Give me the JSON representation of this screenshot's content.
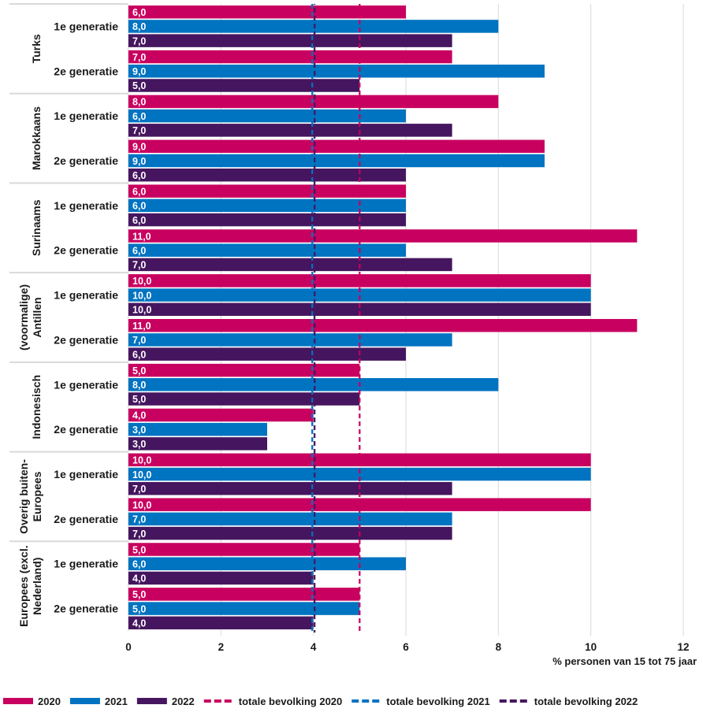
{
  "chart_data": {
    "type": "bar",
    "orientation": "horizontal",
    "title": "",
    "xlabel": "% personen van 15 tot 75 jaar",
    "ylabel": "",
    "xlim": [
      0,
      12
    ],
    "xticks": [
      0,
      2,
      4,
      6,
      8,
      10,
      12
    ],
    "grid": true,
    "legend_position": "bottom",
    "series_names": [
      "2020",
      "2021",
      "2022"
    ],
    "series_colors": {
      "2020": "#C8005F",
      "2021": "#0073C1",
      "2022": "#45165F"
    },
    "groups": [
      {
        "name": [
          "Turks"
        ],
        "rows": [
          {
            "label": "1e generatie",
            "values": [
              6.0,
              8.0,
              7.0
            ],
            "labels": [
              "6,0",
              "8,0",
              "7,0"
            ]
          },
          {
            "label": "2e generatie",
            "values": [
              7.0,
              9.0,
              5.0
            ],
            "labels": [
              "7,0",
              "9,0",
              "5,0"
            ]
          }
        ]
      },
      {
        "name": [
          "Marokkaans"
        ],
        "rows": [
          {
            "label": "1e generatie",
            "values": [
              8.0,
              6.0,
              7.0
            ],
            "labels": [
              "8,0",
              "6,0",
              "7,0"
            ]
          },
          {
            "label": "2e generatie",
            "values": [
              9.0,
              9.0,
              6.0
            ],
            "labels": [
              "9,0",
              "9,0",
              "6,0"
            ]
          }
        ]
      },
      {
        "name": [
          "Surinaams"
        ],
        "rows": [
          {
            "label": "1e generatie",
            "values": [
              6.0,
              6.0,
              6.0
            ],
            "labels": [
              "6,0",
              "6,0",
              "6,0"
            ]
          },
          {
            "label": "2e generatie",
            "values": [
              11.0,
              6.0,
              7.0
            ],
            "labels": [
              "11,0",
              "6,0",
              "7,0"
            ]
          }
        ]
      },
      {
        "name": [
          "(voormalige)",
          "Antillen"
        ],
        "rows": [
          {
            "label": "1e generatie",
            "values": [
              10.0,
              10.0,
              10.0
            ],
            "labels": [
              "10,0",
              "10,0",
              "10,0"
            ]
          },
          {
            "label": "2e generatie",
            "values": [
              11.0,
              7.0,
              6.0
            ],
            "labels": [
              "11,0",
              "7,0",
              "6,0"
            ]
          }
        ]
      },
      {
        "name": [
          "Indonesisch"
        ],
        "rows": [
          {
            "label": "1e generatie",
            "values": [
              5.0,
              8.0,
              5.0
            ],
            "labels": [
              "5,0",
              "8,0",
              "5,0"
            ]
          },
          {
            "label": "2e generatie",
            "values": [
              4.0,
              3.0,
              3.0
            ],
            "labels": [
              "4,0",
              "3,0",
              "3,0"
            ]
          }
        ]
      },
      {
        "name": [
          "Overig buiten-",
          "Europees"
        ],
        "rows": [
          {
            "label": "1e generatie",
            "values": [
              10.0,
              10.0,
              7.0
            ],
            "labels": [
              "10,0",
              "10,0",
              "7,0"
            ]
          },
          {
            "label": "2e generatie",
            "values": [
              10.0,
              7.0,
              7.0
            ],
            "labels": [
              "10,0",
              "7,0",
              "7,0"
            ]
          }
        ]
      },
      {
        "name": [
          "Europees (excl.",
          "Nederland)"
        ],
        "rows": [
          {
            "label": "1e generatie",
            "values": [
              5.0,
              6.0,
              4.0
            ],
            "labels": [
              "5,0",
              "6,0",
              "4,0"
            ]
          },
          {
            "label": "2e generatie",
            "values": [
              5.0,
              5.0,
              4.0
            ],
            "labels": [
              "5,0",
              "5,0",
              "4,0"
            ]
          }
        ]
      }
    ],
    "reference_lines": [
      {
        "name": "totale bevolking 2020",
        "value": 5.0,
        "color": "#C8005F"
      },
      {
        "name": "totale bevolking 2021",
        "value": 4.0,
        "color": "#0073C1"
      },
      {
        "name": "totale bevolking 2022",
        "value": 4.0,
        "color": "#45165F"
      }
    ],
    "legend": [
      {
        "label": "2020",
        "kind": "bar",
        "color": "#C8005F"
      },
      {
        "label": "2021",
        "kind": "bar",
        "color": "#0073C1"
      },
      {
        "label": "2022",
        "kind": "bar",
        "color": "#45165F"
      },
      {
        "label": "totale bevolking 2020",
        "kind": "dashed",
        "color": "#C8005F"
      },
      {
        "label": "totale bevolking 2021",
        "kind": "dashed",
        "color": "#0073C1"
      },
      {
        "label": "totale bevolking 2022",
        "kind": "dashed",
        "color": "#45165F"
      }
    ]
  }
}
